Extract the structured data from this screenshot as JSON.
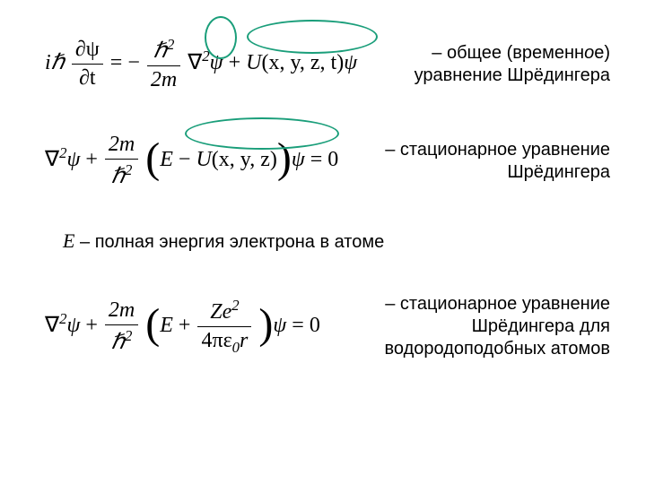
{
  "eq1": {
    "lhs_i": "i",
    "lhs_hbar": "ℏ",
    "partial_psi": "∂ψ",
    "partial_t": "∂t",
    "equals": "=",
    "minus": "−",
    "hbar_sq": "ℏ",
    "sq_exp": "2",
    "two_m": "2m",
    "nabla": "∇",
    "psi": "ψ",
    "plus": "+",
    "U": "U",
    "args": "(x, y, z, t)",
    "description_line1": "– общее (временн",
    "description_o": "о",
    "description_line1_end": "е)",
    "description_line2": "уравнение Шрёдингера"
  },
  "eq2": {
    "nabla": "∇",
    "sq": "2",
    "psi": "ψ",
    "plus": "+",
    "two_m": "2m",
    "hbar": "ℏ",
    "lparen": "(",
    "E": "E",
    "minus": "−",
    "U": "U",
    "args": "(x, y, z)",
    "rparen": ")",
    "eq_zero": "= 0",
    "description_line1": "– стационарное уравнение",
    "description_line2": "Шрёдингера"
  },
  "note": {
    "E": "E",
    "text": " – полная энергия электрона в атоме"
  },
  "eq3": {
    "nabla": "∇",
    "sq": "2",
    "psi": "ψ",
    "plus": "+",
    "two_m": "2m",
    "hbar": "ℏ",
    "E": "E",
    "Ze": "Ze",
    "eps": "4πε",
    "zero": "0",
    "r": "r",
    "eq_zero": "= 0",
    "description_line1": "– стационарное уравнение",
    "description_line2": "Шрёдингера для",
    "description_line3": "водородоподобных атомов"
  },
  "styling": {
    "ellipse_color": "#1a9e7a",
    "ellipse_width": 2,
    "background": "#ffffff",
    "text_color": "#000000",
    "eq_fontsize": 24,
    "desc_fontsize": 20
  }
}
